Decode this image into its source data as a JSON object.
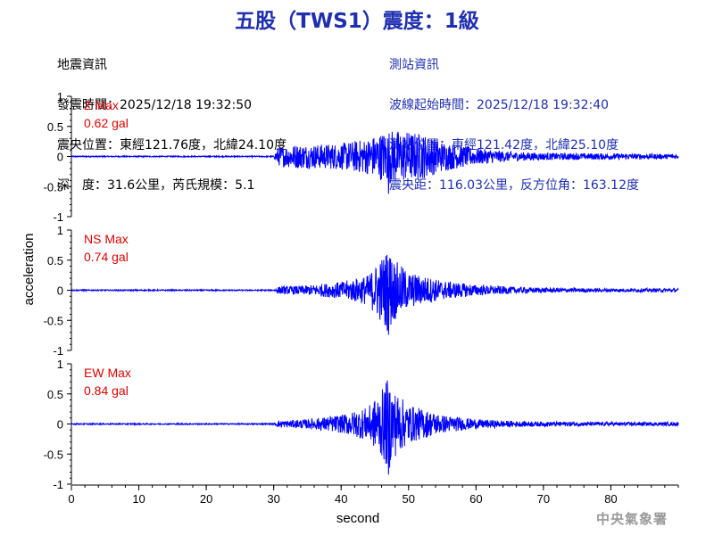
{
  "header": {
    "title": "五股（TWS1）震度：1級"
  },
  "earthquake_info": {
    "heading": "地震資訊",
    "time": "發震時間：2025/12/18 19:32:50",
    "epicenter": "震央位置：東經121.76度，北緯24.10度",
    "depth_mag": "深　度：31.6公里，芮氏規模：5.1"
  },
  "station_info": {
    "heading": "測站資訊",
    "wave_start": "波線起始時間：2025/12/18 19:32:40",
    "location": "測站位置：東經121.42度，北緯25.10度",
    "distance": "震央距：116.03公里，反方位角：163.12度"
  },
  "footer": {
    "agency": "中央氣象署"
  },
  "colors": {
    "trace": "#0000ff",
    "label": "#e00000",
    "title": "#1f2fb0"
  },
  "chart_data": {
    "type": "line",
    "xlabel": "second",
    "ylabel": "acceleration",
    "xlim": [
      0,
      90
    ],
    "x_ticks": [
      "0",
      "10",
      "20",
      "30",
      "40",
      "50",
      "60",
      "70",
      "80"
    ],
    "y_ticks": [
      "1",
      "0.5",
      "0",
      "-0.5",
      "-1"
    ],
    "ylim": [
      -1,
      1
    ],
    "grid": false,
    "panels": [
      {
        "name": "Z Max",
        "max_label": "0.62 gal",
        "peak": 0.62,
        "onset_s": 30.5,
        "envelope": [
          [
            0,
            0.01
          ],
          [
            30,
            0.01
          ],
          [
            30.5,
            0.15
          ],
          [
            33,
            0.2
          ],
          [
            36,
            0.2
          ],
          [
            40,
            0.22
          ],
          [
            44,
            0.3
          ],
          [
            47,
            0.45
          ],
          [
            50,
            0.42
          ],
          [
            52,
            0.38
          ],
          [
            55,
            0.25
          ],
          [
            60,
            0.14
          ],
          [
            65,
            0.08
          ],
          [
            70,
            0.06
          ],
          [
            80,
            0.05
          ],
          [
            90,
            0.04
          ]
        ]
      },
      {
        "name": "NS Max",
        "max_label": "0.74 gal",
        "peak": 0.74,
        "onset_s": 30.5,
        "envelope": [
          [
            0,
            0.01
          ],
          [
            30,
            0.01
          ],
          [
            30.5,
            0.06
          ],
          [
            35,
            0.08
          ],
          [
            40,
            0.14
          ],
          [
            44,
            0.25
          ],
          [
            46,
            0.55
          ],
          [
            47,
            0.7
          ],
          [
            48,
            0.5
          ],
          [
            50,
            0.3
          ],
          [
            55,
            0.16
          ],
          [
            60,
            0.09
          ],
          [
            65,
            0.06
          ],
          [
            70,
            0.04
          ],
          [
            80,
            0.03
          ],
          [
            90,
            0.03
          ]
        ]
      },
      {
        "name": "EW Max",
        "max_label": "0.84 gal",
        "peak": 0.84,
        "onset_s": 30.5,
        "envelope": [
          [
            0,
            0.01
          ],
          [
            30,
            0.01
          ],
          [
            30.5,
            0.05
          ],
          [
            35,
            0.08
          ],
          [
            40,
            0.15
          ],
          [
            44,
            0.28
          ],
          [
            46,
            0.55
          ],
          [
            47,
            0.78
          ],
          [
            48,
            0.55
          ],
          [
            50,
            0.32
          ],
          [
            55,
            0.15
          ],
          [
            60,
            0.08
          ],
          [
            65,
            0.05
          ],
          [
            70,
            0.04
          ],
          [
            80,
            0.03
          ],
          [
            90,
            0.03
          ]
        ]
      }
    ]
  }
}
